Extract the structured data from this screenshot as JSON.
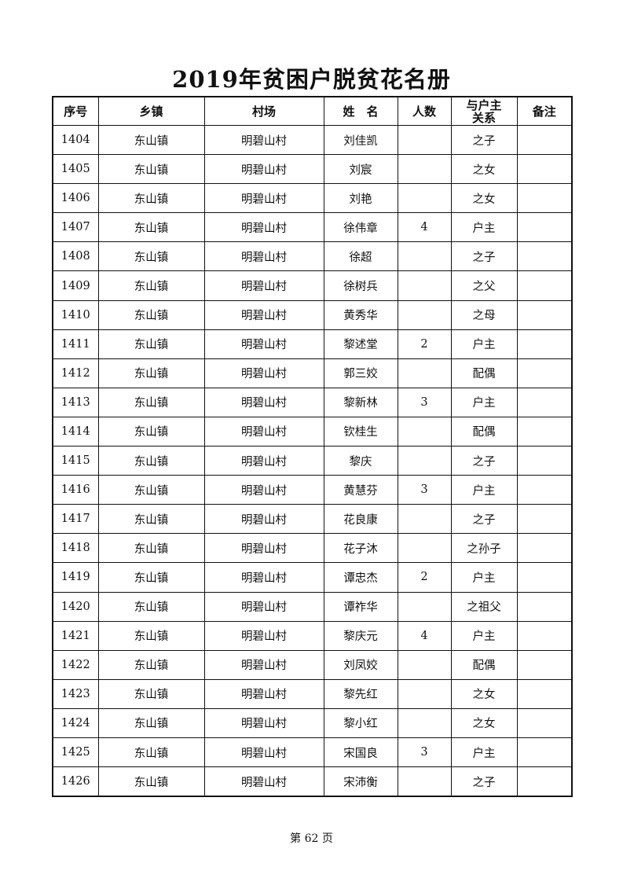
{
  "title": "2019年贫困户脱贫花名册",
  "columns": [
    "序号",
    "乡镇",
    "村场",
    "姓　名",
    "人数",
    "与户主\n关系",
    "备注"
  ],
  "rows": [
    [
      "1404",
      "东山镇",
      "明碧山村",
      "刘佳凯",
      "",
      "之子",
      ""
    ],
    [
      "1405",
      "东山镇",
      "明碧山村",
      "刘宸",
      "",
      "之女",
      ""
    ],
    [
      "1406",
      "东山镇",
      "明碧山村",
      "刘艳",
      "",
      "之女",
      ""
    ],
    [
      "1407",
      "东山镇",
      "明碧山村",
      "徐伟章",
      "4",
      "户主",
      ""
    ],
    [
      "1408",
      "东山镇",
      "明碧山村",
      "徐超",
      "",
      "之子",
      ""
    ],
    [
      "1409",
      "东山镇",
      "明碧山村",
      "徐树兵",
      "",
      "之父",
      ""
    ],
    [
      "1410",
      "东山镇",
      "明碧山村",
      "黄秀华",
      "",
      "之母",
      ""
    ],
    [
      "1411",
      "东山镇",
      "明碧山村",
      "黎述堂",
      "2",
      "户主",
      ""
    ],
    [
      "1412",
      "东山镇",
      "明碧山村",
      "郭三姣",
      "",
      "配偶",
      ""
    ],
    [
      "1413",
      "东山镇",
      "明碧山村",
      "黎新林",
      "3",
      "户主",
      ""
    ],
    [
      "1414",
      "东山镇",
      "明碧山村",
      "钦桂生",
      "",
      "配偶",
      ""
    ],
    [
      "1415",
      "东山镇",
      "明碧山村",
      "黎庆",
      "",
      "之子",
      ""
    ],
    [
      "1416",
      "东山镇",
      "明碧山村",
      "黄慧芬",
      "3",
      "户主",
      ""
    ],
    [
      "1417",
      "东山镇",
      "明碧山村",
      "花良康",
      "",
      "之子",
      ""
    ],
    [
      "1418",
      "东山镇",
      "明碧山村",
      "花子沐",
      "",
      "之孙子",
      ""
    ],
    [
      "1419",
      "东山镇",
      "明碧山村",
      "谭忠杰",
      "2",
      "户主",
      ""
    ],
    [
      "1420",
      "东山镇",
      "明碧山村",
      "谭祚华",
      "",
      "之祖父",
      ""
    ],
    [
      "1421",
      "东山镇",
      "明碧山村",
      "黎庆元",
      "4",
      "户主",
      ""
    ],
    [
      "1422",
      "东山镇",
      "明碧山村",
      "刘凤姣",
      "",
      "配偶",
      ""
    ],
    [
      "1423",
      "东山镇",
      "明碧山村",
      "黎先红",
      "",
      "之女",
      ""
    ],
    [
      "1424",
      "东山镇",
      "明碧山村",
      "黎小红",
      "",
      "之女",
      ""
    ],
    [
      "1425",
      "东山镇",
      "明碧山村",
      "宋国良",
      "3",
      "户主",
      ""
    ],
    [
      "1426",
      "东山镇",
      "明碧山村",
      "宋沛衡",
      "",
      "之子",
      ""
    ]
  ],
  "footer": "第 62 页"
}
